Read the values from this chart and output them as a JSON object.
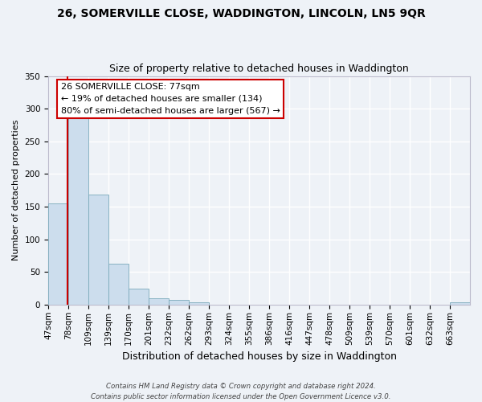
{
  "title": "26, SOMERVILLE CLOSE, WADDINGTON, LINCOLN, LN5 9QR",
  "subtitle": "Size of property relative to detached houses in Waddington",
  "xlabel": "Distribution of detached houses by size in Waddington",
  "ylabel": "Number of detached properties",
  "bin_labels": [
    "47sqm",
    "78sqm",
    "109sqm",
    "139sqm",
    "170sqm",
    "201sqm",
    "232sqm",
    "262sqm",
    "293sqm",
    "324sqm",
    "355sqm",
    "386sqm",
    "416sqm",
    "447sqm",
    "478sqm",
    "509sqm",
    "539sqm",
    "570sqm",
    "601sqm",
    "632sqm",
    "663sqm"
  ],
  "bar_values": [
    155,
    287,
    168,
    63,
    24,
    10,
    7,
    3,
    0,
    0,
    0,
    0,
    0,
    0,
    0,
    0,
    0,
    0,
    0,
    0,
    3
  ],
  "bar_color": "#ccdded",
  "bar_edge_color": "#7aaabb",
  "background_color": "#eef2f7",
  "grid_color": "#ffffff",
  "ylim": [
    0,
    350
  ],
  "yticks": [
    0,
    50,
    100,
    150,
    200,
    250,
    300,
    350
  ],
  "marker_label": "26 SOMERVILLE CLOSE: 77sqm",
  "annotation_line1": "← 19% of detached houses are smaller (134)",
  "annotation_line2": "80% of semi-detached houses are larger (567) →",
  "annotation_box_color": "#ffffff",
  "annotation_box_edge": "#cc0000",
  "marker_line_color": "#cc0000",
  "footer1": "Contains HM Land Registry data © Crown copyright and database right 2024.",
  "footer2": "Contains public sector information licensed under the Open Government Licence v3.0."
}
